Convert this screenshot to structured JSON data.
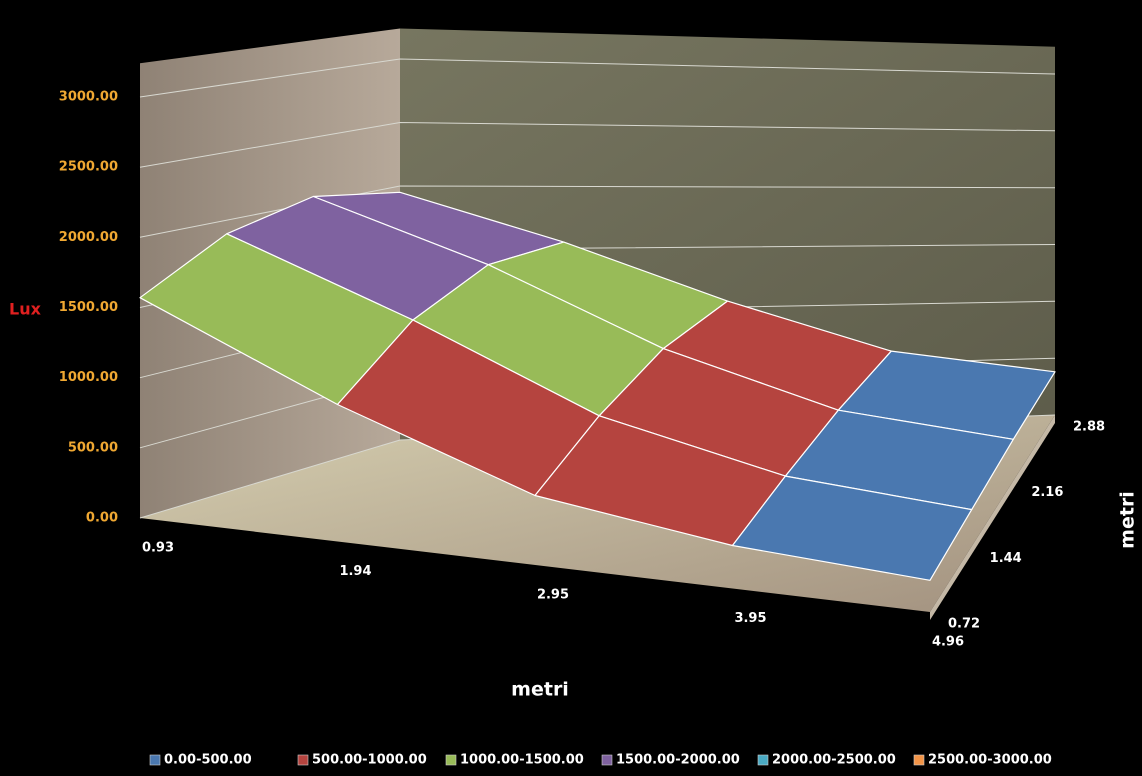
{
  "chart_data": {
    "type": "surface",
    "x_title": "metri",
    "y_title": "metri",
    "z_title": "Lux",
    "categories": [
      "0.93",
      "1.94",
      "2.95",
      "3.95",
      "4.96"
    ],
    "series": [
      {
        "name": "0.72",
        "values": [
          1570,
          1000,
          520,
          330,
          250
        ]
      },
      {
        "name": "1.44",
        "values": [
          1900,
          1400,
          800,
          450,
          300
        ]
      },
      {
        "name": "2.16",
        "values": [
          2050,
          1600,
          1000,
          550,
          350
        ]
      },
      {
        "name": "2.88",
        "values": [
          1950,
          1550,
          1050,
          600,
          380
        ]
      }
    ],
    "zlim": [
      0,
      3000
    ],
    "zticks": [
      {
        "value": 0,
        "label": "0.00"
      },
      {
        "value": 500,
        "label": "500.00"
      },
      {
        "value": 1000,
        "label": "1000.00"
      },
      {
        "value": 1500,
        "label": "1500.00"
      },
      {
        "value": 2000,
        "label": "2000.00"
      },
      {
        "value": 2500,
        "label": "2500.00"
      },
      {
        "value": 3000,
        "label": "3000.00"
      }
    ],
    "grid": true,
    "legend": "bottom",
    "bands": [
      {
        "label": "0.00-500.00",
        "from": 0,
        "to": 500,
        "color": "#4a78b0"
      },
      {
        "label": "500.00-1000.00",
        "from": 500,
        "to": 1000,
        "color": "#b5443f"
      },
      {
        "label": "1000.00-1500.00",
        "from": 1000,
        "to": 1500,
        "color": "#98bb58"
      },
      {
        "label": "1500.00-2000.00",
        "from": 1500,
        "to": 2000,
        "color": "#7f62a0"
      },
      {
        "label": "2000.00-2500.00",
        "from": 2000,
        "to": 2500,
        "color": "#4aaac4"
      },
      {
        "label": "2500.00-3000.00",
        "from": 2500,
        "to": 3000,
        "color": "#f39548"
      }
    ]
  }
}
